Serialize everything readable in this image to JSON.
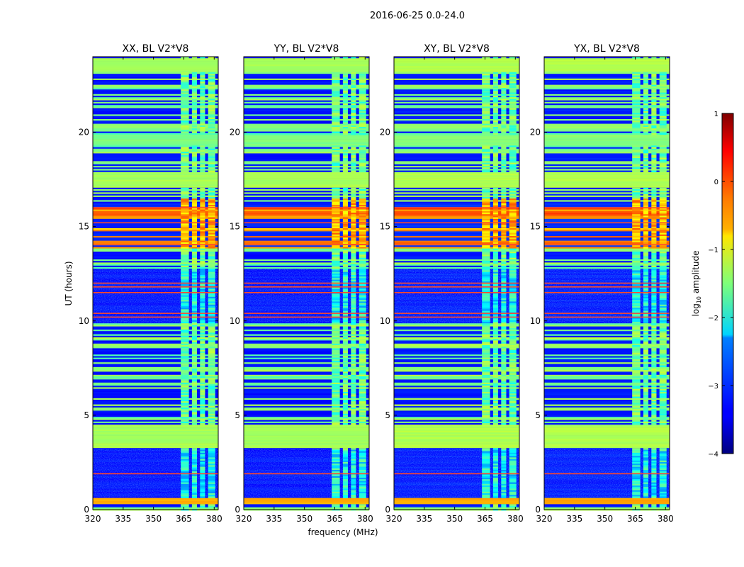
{
  "chart_data": {
    "type": "heatmap",
    "suptitle": "2016-06-25 0.0-24.0",
    "xlabel": "frequency (MHz)",
    "ylabel": "UT (hours)",
    "xlim": [
      320,
      382
    ],
    "ylim": [
      0,
      24
    ],
    "xticks": [
      320,
      335,
      350,
      365,
      380
    ],
    "yticks": [
      0,
      5,
      10,
      15,
      20
    ],
    "panels": [
      {
        "title": "XX, BL V2*V8",
        "pol": "XX"
      },
      {
        "title": "YY, BL V2*V8",
        "pol": "YY"
      },
      {
        "title": "XY, BL V2*V8",
        "pol": "XY"
      },
      {
        "title": "YX, BL V2*V8",
        "pol": "YX"
      }
    ],
    "colorbar": {
      "label": "log10 amplitude",
      "label_base": "log",
      "label_sub": "10",
      "label_rest": " amplitude",
      "range": [
        -4,
        1
      ],
      "ticks": [
        1,
        0,
        -1,
        -2,
        -3,
        -4
      ],
      "tick_labels": [
        "1",
        "0",
        "−1",
        "−2",
        "−3",
        "−4"
      ],
      "colormap": "jet"
    },
    "time_bands": [
      {
        "t0": 0.0,
        "t1": 0.15,
        "level": -1.5
      },
      {
        "t0": 0.25,
        "t1": 0.65,
        "level": -0.5
      },
      {
        "t0": 3.3,
        "t1": 4.5,
        "level": -1.3
      },
      {
        "t0": 17.1,
        "t1": 17.9,
        "level": -1.3
      },
      {
        "t0": 19.3,
        "t1": 19.9,
        "level": -1.5
      },
      {
        "t0": 23.15,
        "t1": 23.9,
        "level": -1.3
      }
    ],
    "quiet_intervals": [
      {
        "t0": 0.65,
        "t1": 3.2,
        "level": -3.3
      },
      {
        "t0": 9.85,
        "t1": 12.75,
        "level": -3.3
      }
    ],
    "bright_intervals": [
      {
        "t0": 13.8,
        "t1": 16.2,
        "level": -0.3
      }
    ],
    "rfi_lines_hours": [
      1.9,
      10.2,
      10.4,
      11.5,
      11.8,
      12.0,
      14.05,
      15.2,
      16.0
    ],
    "rfi_channels_MHz": [
      {
        "f0": 363.5,
        "f1": 367.5
      },
      {
        "f0": 369.0,
        "f1": 371.5
      },
      {
        "f0": 373.0,
        "f1": 375.5
      },
      {
        "f0": 377.0,
        "f1": 380.5
      }
    ]
  }
}
